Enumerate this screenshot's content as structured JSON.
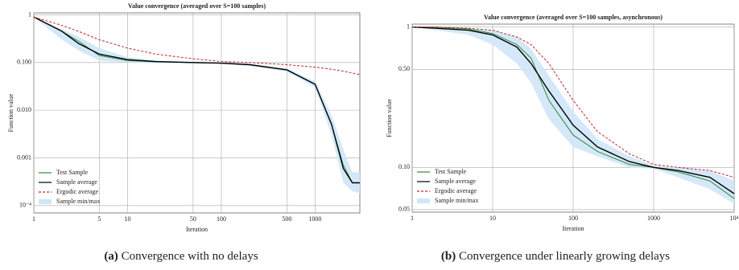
{
  "chart_data": [
    {
      "type": "line",
      "title": "Value convergence (averaged over S=100 samples)",
      "xlabel": "Iteration",
      "ylabel": "Function value",
      "caption_label": "(a)",
      "caption": "Convergence with no delays",
      "xlog": true,
      "ylog": true,
      "grid": true,
      "legend": "lower left",
      "xlim": [
        1,
        3000
      ],
      "ylim": [
        7e-05,
        1.1
      ],
      "xticks": [
        1,
        5,
        10,
        50,
        100,
        500,
        1000
      ],
      "yticks": [
        {
          "value": 1,
          "label": "1"
        },
        {
          "value": 0.1,
          "label": "0.100"
        },
        {
          "value": 0.01,
          "label": "0.010"
        },
        {
          "value": 0.001,
          "label": "0.001"
        },
        {
          "value": 0.0001,
          "label": "10⁻⁴"
        }
      ],
      "x": [
        1,
        2,
        3,
        5,
        10,
        20,
        50,
        100,
        200,
        500,
        1000,
        1500,
        2000,
        2500,
        3000
      ],
      "series": [
        {
          "name": "Test Sample",
          "color": "#2e8b3a",
          "values": [
            0.9,
            0.45,
            0.28,
            0.14,
            0.11,
            0.103,
            0.1,
            0.097,
            0.09,
            0.07,
            0.035,
            0.005,
            0.0007,
            0.0003,
            0.0003
          ]
        },
        {
          "name": "Sample average",
          "color": "#000000",
          "values": [
            0.9,
            0.45,
            0.25,
            0.15,
            0.115,
            0.105,
            0.1,
            0.097,
            0.09,
            0.07,
            0.035,
            0.005,
            0.0006,
            0.0003,
            0.0003
          ]
        },
        {
          "name": "Ergodic average",
          "color": "#c0282a",
          "values": [
            0.9,
            0.6,
            0.45,
            0.3,
            0.2,
            0.15,
            0.12,
            0.105,
            0.1,
            0.09,
            0.08,
            0.072,
            0.066,
            0.06,
            0.056
          ]
        },
        {
          "name": "Sample min/max",
          "color": "#cfe6f8",
          "low": [
            0.9,
            0.3,
            0.18,
            0.11,
            0.1,
            0.098,
            0.095,
            0.093,
            0.085,
            0.065,
            0.03,
            0.003,
            0.0003,
            0.0002,
            0.00018
          ],
          "high": [
            0.9,
            0.5,
            0.35,
            0.2,
            0.13,
            0.11,
            0.103,
            0.1,
            0.095,
            0.075,
            0.04,
            0.008,
            0.0015,
            0.0005,
            0.0005
          ]
        }
      ]
    },
    {
      "type": "line",
      "title": "Value convergence (averaged over S=100 samples, asynchronous)",
      "xlabel": "Iteration",
      "ylabel": "Function value",
      "caption_label": "(b)",
      "caption": "Convergence under linearly growing delays",
      "xlog": true,
      "ylog": true,
      "grid": true,
      "legend": "lower left",
      "xlim": [
        1,
        10000
      ],
      "ylim": [
        0.048,
        1.05
      ],
      "xticks": [
        1,
        10,
        100,
        1000,
        {
          "value": 10000,
          "label": "10⁴"
        }
      ],
      "yticks": [
        1,
        {
          "value": 0.5,
          "label": "0.50"
        },
        {
          "value": 0.1,
          "label": "0.10"
        },
        0.05
      ],
      "x": [
        1,
        2,
        5,
        10,
        20,
        30,
        50,
        100,
        200,
        500,
        1000,
        2000,
        5000,
        10000
      ],
      "series": [
        {
          "name": "Test Sample",
          "color": "#2e8b3a",
          "values": [
            1,
            1,
            0.97,
            0.9,
            0.75,
            0.6,
            0.3,
            0.17,
            0.13,
            0.105,
            0.1,
            0.093,
            0.08,
            0.06
          ]
        },
        {
          "name": "Sample average",
          "color": "#000000",
          "values": [
            1,
            0.98,
            0.95,
            0.88,
            0.72,
            0.55,
            0.35,
            0.2,
            0.14,
            0.11,
            0.1,
            0.095,
            0.085,
            0.065
          ]
        },
        {
          "name": "Ergodic average",
          "color": "#c0282a",
          "values": [
            1,
            1,
            0.98,
            0.95,
            0.85,
            0.75,
            0.55,
            0.3,
            0.18,
            0.125,
            0.105,
            0.1,
            0.095,
            0.085
          ]
        },
        {
          "name": "Sample min/max",
          "color": "#cfe6f8",
          "low": [
            1,
            0.95,
            0.88,
            0.75,
            0.55,
            0.4,
            0.22,
            0.14,
            0.12,
            0.1,
            0.098,
            0.085,
            0.07,
            0.055
          ],
          "high": [
            1,
            1,
            0.99,
            0.95,
            0.85,
            0.7,
            0.45,
            0.25,
            0.16,
            0.12,
            0.103,
            0.1,
            0.095,
            0.08
          ]
        }
      ]
    }
  ]
}
